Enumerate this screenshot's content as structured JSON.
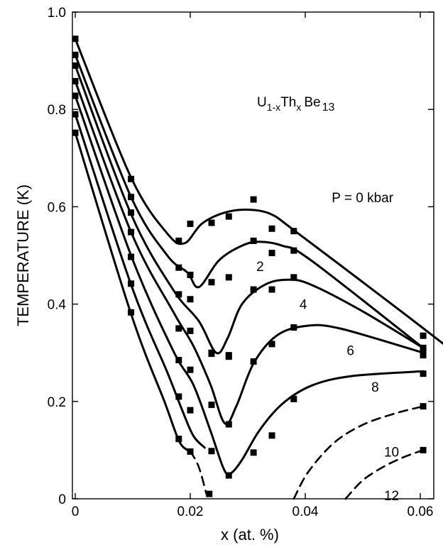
{
  "chart_data": {
    "type": "scatter",
    "title": "",
    "xlabel": "x (at. %)",
    "ylabel": "TEMPERATURE (K)",
    "xlim": [
      0,
      0.07
    ],
    "ylim": [
      0,
      1.0
    ],
    "x_ticks": [
      "0",
      "0.02",
      "0.04",
      "0.06"
    ],
    "y_ticks": [
      "0",
      "0.2",
      "0.4",
      "0.6",
      "0.8",
      "1.0"
    ],
    "grid": false,
    "legend": "none",
    "compound": {
      "base": "U",
      "sub1": "1-x",
      "mid": "Th",
      "sub2": "x",
      "end": "Be",
      "sub3": "13"
    },
    "series": [
      {
        "name": "P = 0 kbar",
        "points": [
          [
            0,
            0.945
          ],
          [
            0.0097,
            0.657
          ],
          [
            0.018,
            0.53
          ],
          [
            0.02,
            0.565
          ],
          [
            0.0237,
            0.567
          ],
          [
            0.0267,
            0.58
          ],
          [
            0.031,
            0.615
          ],
          [
            0.0342,
            0.555
          ],
          [
            0.038,
            0.55
          ],
          [
            0.0605,
            0.335
          ]
        ],
        "curve": [
          [
            0,
            0.945
          ],
          [
            0.0097,
            0.66
          ],
          [
            0.016,
            0.545
          ],
          [
            0.019,
            0.525
          ],
          [
            0.022,
            0.565
          ],
          [
            0.026,
            0.588
          ],
          [
            0.03,
            0.594
          ],
          [
            0.034,
            0.585
          ],
          [
            0.038,
            0.552
          ],
          [
            0.05,
            0.445
          ],
          [
            0.06,
            0.355
          ],
          [
            0.0695,
            0.268
          ]
        ],
        "dashed": false
      },
      {
        "name": "2",
        "points": [
          [
            0,
            0.912
          ],
          [
            0.0097,
            0.62
          ],
          [
            0.018,
            0.475
          ],
          [
            0.02,
            0.46
          ],
          [
            0.0237,
            0.445
          ],
          [
            0.0267,
            0.455
          ],
          [
            0.031,
            0.53
          ],
          [
            0.0342,
            0.505
          ],
          [
            0.038,
            0.51
          ],
          [
            0.0605,
            0.31
          ]
        ],
        "curve": [
          [
            0,
            0.912
          ],
          [
            0.0097,
            0.62
          ],
          [
            0.016,
            0.5
          ],
          [
            0.0195,
            0.465
          ],
          [
            0.0215,
            0.435
          ],
          [
            0.025,
            0.49
          ],
          [
            0.029,
            0.52
          ],
          [
            0.032,
            0.528
          ],
          [
            0.036,
            0.52
          ],
          [
            0.041,
            0.49
          ],
          [
            0.0605,
            0.31
          ]
        ],
        "dashed": false
      },
      {
        "name": "4",
        "points": [
          [
            0,
            0.89
          ],
          [
            0.0097,
            0.588
          ],
          [
            0.018,
            0.42
          ],
          [
            0.02,
            0.41
          ],
          [
            0.0237,
            0.3
          ],
          [
            0.0267,
            0.295
          ],
          [
            0.031,
            0.43
          ],
          [
            0.0342,
            0.43
          ],
          [
            0.038,
            0.455
          ],
          [
            0.0605,
            0.305
          ]
        ],
        "curve": [
          [
            0,
            0.89
          ],
          [
            0.0097,
            0.585
          ],
          [
            0.017,
            0.43
          ],
          [
            0.0215,
            0.365
          ],
          [
            0.0245,
            0.3
          ],
          [
            0.0265,
            0.33
          ],
          [
            0.029,
            0.4
          ],
          [
            0.033,
            0.44
          ],
          [
            0.037,
            0.45
          ],
          [
            0.041,
            0.44
          ],
          [
            0.05,
            0.385
          ],
          [
            0.0605,
            0.31
          ]
        ],
        "dashed": false
      },
      {
        "name": "6",
        "points": [
          [
            0,
            0.858
          ],
          [
            0.0097,
            0.548
          ],
          [
            0.018,
            0.35
          ],
          [
            0.02,
            0.345
          ],
          [
            0.0237,
            0.298
          ],
          [
            0.0267,
            0.292
          ],
          [
            0.031,
            0.282
          ],
          [
            0.0342,
            0.318
          ],
          [
            0.038,
            0.352
          ],
          [
            0.0605,
            0.295
          ]
        ],
        "curve": [
          [
            0,
            0.858
          ],
          [
            0.0097,
            0.548
          ],
          [
            0.017,
            0.385
          ],
          [
            0.0205,
            0.315
          ],
          [
            0.0235,
            0.235
          ],
          [
            0.026,
            0.155
          ],
          [
            0.028,
            0.19
          ],
          [
            0.031,
            0.278
          ],
          [
            0.035,
            0.335
          ],
          [
            0.04,
            0.355
          ],
          [
            0.046,
            0.35
          ],
          [
            0.0605,
            0.3
          ]
        ],
        "dashed": false
      },
      {
        "name": "8",
        "points": [
          [
            0,
            0.828
          ],
          [
            0.0097,
            0.497
          ],
          [
            0.018,
            0.285
          ],
          [
            0.02,
            0.265
          ],
          [
            0.0237,
            0.193
          ],
          [
            0.0267,
            0.153
          ],
          [
            0.031,
            0.095
          ],
          [
            0.0342,
            0.13
          ],
          [
            0.038,
            0.205
          ],
          [
            0.0605,
            0.257
          ]
        ],
        "curve": [
          [
            0,
            0.828
          ],
          [
            0.0097,
            0.5
          ],
          [
            0.017,
            0.305
          ],
          [
            0.0205,
            0.235
          ],
          [
            0.0235,
            0.14
          ],
          [
            0.0258,
            0.062
          ],
          [
            0.027,
            0.052
          ],
          [
            0.029,
            0.08
          ],
          [
            0.032,
            0.14
          ],
          [
            0.036,
            0.195
          ],
          [
            0.041,
            0.232
          ],
          [
            0.048,
            0.252
          ],
          [
            0.0605,
            0.262
          ]
        ],
        "dashed": false
      },
      {
        "name": "",
        "points": [
          [
            0,
            0.79
          ],
          [
            0.0097,
            0.442
          ],
          [
            0.018,
            0.21
          ],
          [
            0.02,
            0.182
          ],
          [
            0.0237,
            0.098
          ],
          [
            0.0267,
            0.048
          ]
        ],
        "curve": [
          [
            0,
            0.79
          ],
          [
            0.0097,
            0.44
          ],
          [
            0.016,
            0.26
          ],
          [
            0.0185,
            0.185
          ],
          [
            0.0205,
            0.13
          ],
          [
            0.0225,
            0.105
          ]
        ],
        "dashed": false
      },
      {
        "name": "",
        "points": [
          [
            0,
            0.752
          ],
          [
            0.0097,
            0.383
          ],
          [
            0.018,
            0.123
          ],
          [
            0.02,
            0.097
          ],
          [
            0.0233,
            0.01
          ]
        ],
        "curve": [
          [
            0,
            0.752
          ],
          [
            0.0097,
            0.38
          ],
          [
            0.0155,
            0.2
          ],
          [
            0.018,
            0.12
          ],
          [
            0.0195,
            0.1
          ],
          [
            0.02,
            0.098
          ]
        ],
        "dashed": false
      },
      {
        "name": "",
        "points": [],
        "curve": [
          [
            0.02,
            0.098
          ],
          [
            0.0215,
            0.065
          ],
          [
            0.0228,
            0.01
          ]
        ],
        "dashed": true
      },
      {
        "name": "10",
        "points": [
          [
            0.0605,
            0.19
          ]
        ],
        "curve": [
          [
            0.038,
            0.0
          ],
          [
            0.0405,
            0.055
          ],
          [
            0.045,
            0.115
          ],
          [
            0.05,
            0.152
          ],
          [
            0.0555,
            0.175
          ],
          [
            0.0605,
            0.19
          ]
        ],
        "dashed": true
      },
      {
        "name": "12",
        "points": [
          [
            0.0605,
            0.1
          ]
        ],
        "curve": [
          [
            0.047,
            0.0
          ],
          [
            0.05,
            0.038
          ],
          [
            0.0535,
            0.065
          ],
          [
            0.057,
            0.085
          ],
          [
            0.0605,
            0.1
          ]
        ],
        "dashed": true
      }
    ],
    "annotations": [
      {
        "text": "P = 0 kbar",
        "x": 0.0446,
        "y": 0.609
      },
      {
        "text": "2",
        "x": 0.0315,
        "y": 0.468
      },
      {
        "text": "4",
        "x": 0.039,
        "y": 0.39
      },
      {
        "text": "6",
        "x": 0.0472,
        "y": 0.295
      },
      {
        "text": "8",
        "x": 0.0515,
        "y": 0.22
      },
      {
        "text": "10",
        "x": 0.0537,
        "y": 0.087
      },
      {
        "text": "12",
        "x": 0.0537,
        "y": -0.003
      }
    ]
  }
}
